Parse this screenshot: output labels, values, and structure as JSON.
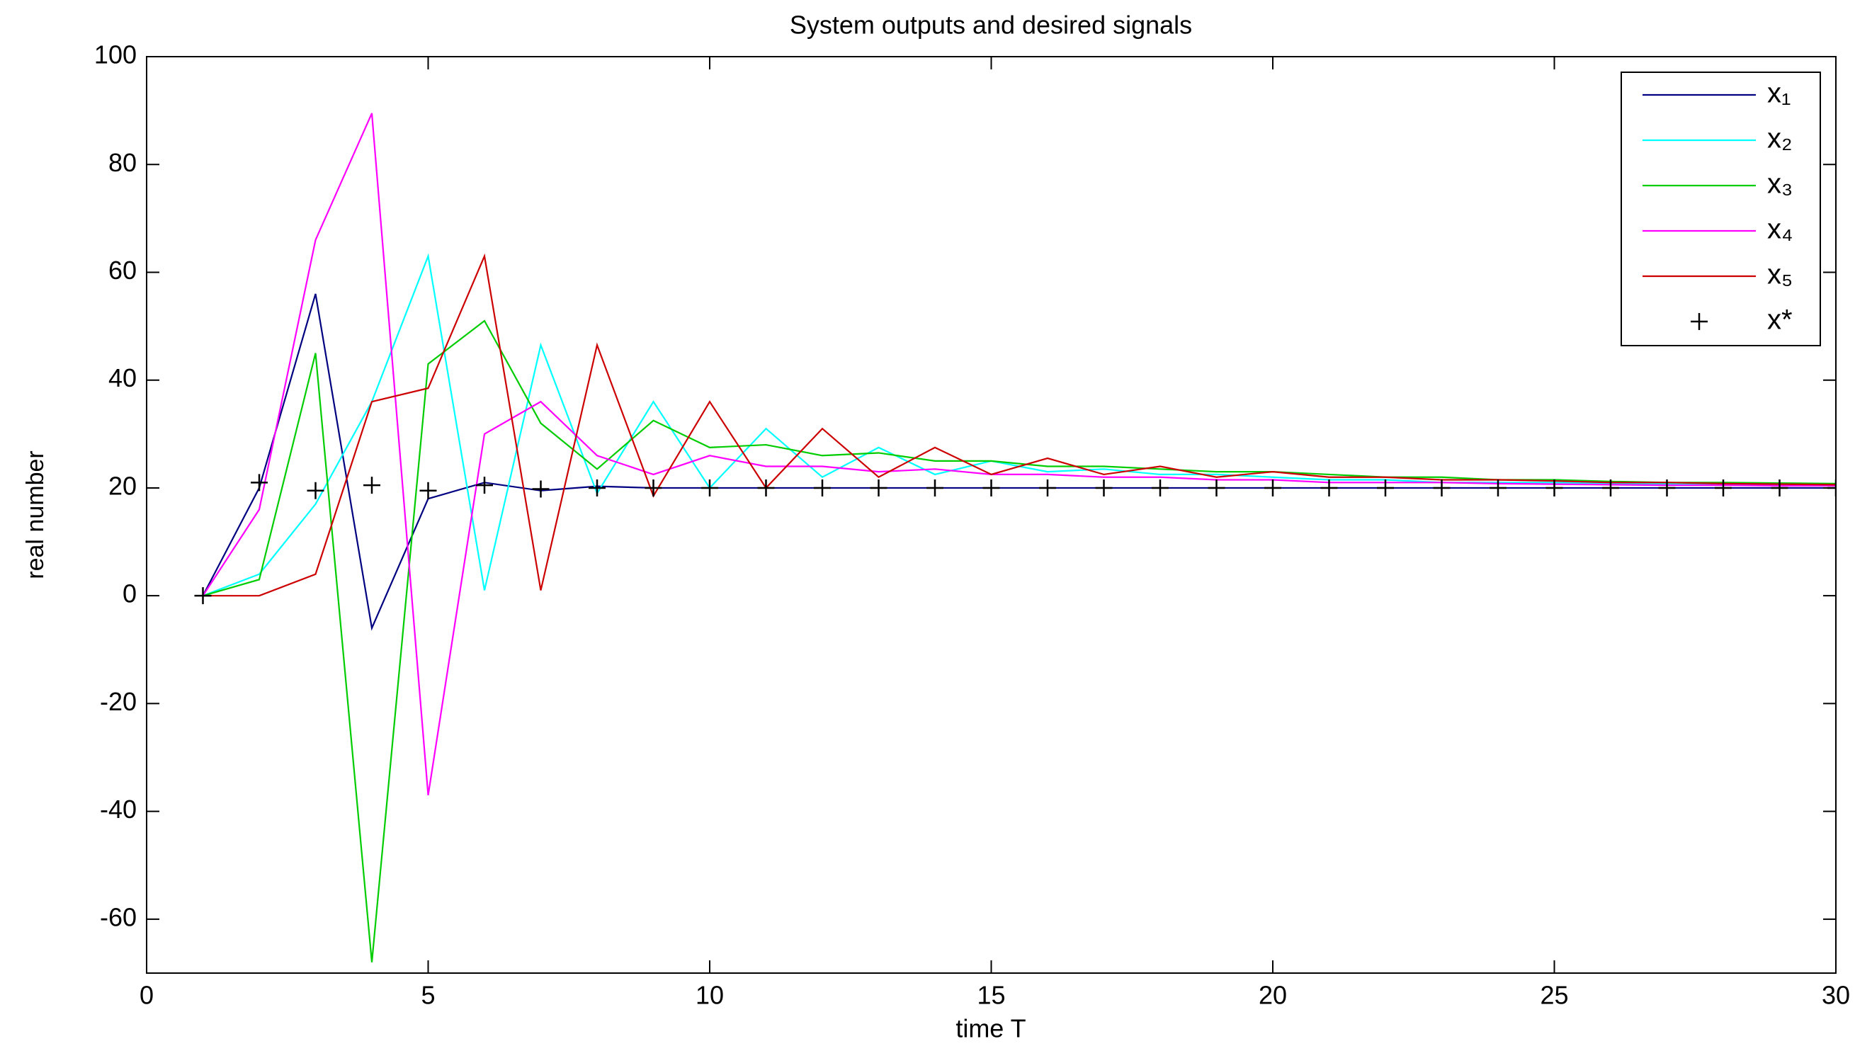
{
  "chart_data": {
    "type": "line",
    "title": "System outputs and desired signals",
    "xlabel": "time T",
    "ylabel": "real number",
    "x": [
      1,
      2,
      3,
      4,
      5,
      6,
      7,
      8,
      9,
      10,
      11,
      12,
      13,
      14,
      15,
      16,
      17,
      18,
      19,
      20,
      21,
      22,
      23,
      24,
      25,
      26,
      27,
      28,
      29,
      30
    ],
    "series": [
      {
        "name": "x₁",
        "color": "#000080",
        "marker": "none",
        "values": [
          0,
          20,
          56,
          -6,
          18,
          21,
          19.5,
          20.3,
          20,
          20,
          20,
          20,
          20,
          20,
          20,
          20,
          20,
          20,
          20,
          20,
          20,
          20,
          20,
          20,
          20,
          20,
          20,
          20,
          20,
          20
        ]
      },
      {
        "name": "x₂",
        "color": "#00ffff",
        "marker": "none",
        "values": [
          0,
          4,
          17,
          36,
          63,
          1,
          46.5,
          19,
          36,
          20,
          31,
          22,
          27.5,
          22.5,
          25,
          23,
          23.5,
          22.5,
          22.5,
          22,
          21.5,
          21.5,
          21,
          21,
          21,
          20.8,
          20.7,
          20.6,
          20.5,
          20.5
        ]
      },
      {
        "name": "x₃",
        "color": "#00cc00",
        "marker": "none",
        "values": [
          0,
          3,
          45,
          -68,
          43,
          51,
          32,
          23.5,
          32.5,
          27.5,
          28,
          26,
          26.5,
          25,
          25,
          24,
          24,
          23.5,
          23,
          23,
          22.5,
          22,
          22,
          21.5,
          21.5,
          21.2,
          21,
          21,
          20.9,
          20.8
        ]
      },
      {
        "name": "x₄",
        "color": "#ff00ff",
        "marker": "none",
        "values": [
          0,
          16,
          66,
          89.5,
          -37,
          30,
          36,
          26,
          22.5,
          26,
          24,
          24,
          23,
          23.5,
          22.5,
          22.5,
          22,
          22,
          21.5,
          21.5,
          21,
          21,
          21,
          20.8,
          20.7,
          20.6,
          20.5,
          20.5,
          20.4,
          20.4
        ]
      },
      {
        "name": "x₅",
        "color": "#cc0000",
        "marker": "none",
        "values": [
          0,
          0,
          4,
          36,
          38.5,
          63,
          1,
          46.5,
          18.5,
          36,
          20,
          31,
          22,
          27.5,
          22.5,
          25.5,
          22.5,
          24,
          22,
          23,
          22,
          22,
          21.5,
          21.5,
          21.3,
          21,
          21,
          20.8,
          20.7,
          20.6
        ]
      },
      {
        "name": "x*",
        "color": "#000000",
        "marker": "+",
        "values": [
          0,
          21,
          19.5,
          20.5,
          19.5,
          20.5,
          19.8,
          20,
          20,
          20,
          20,
          20,
          20,
          20,
          20,
          20,
          20,
          20,
          20,
          20,
          20,
          20,
          20,
          20,
          20,
          20,
          20,
          20,
          20,
          20
        ]
      }
    ],
    "xlim": [
      0,
      30
    ],
    "xticks": [
      0,
      5,
      10,
      15,
      20,
      25,
      30
    ],
    "ylim": [
      -70,
      100
    ],
    "yticks": [
      -60,
      -40,
      -20,
      0,
      20,
      40,
      60,
      80,
      100
    ],
    "grid": false,
    "legend": "upper right"
  }
}
